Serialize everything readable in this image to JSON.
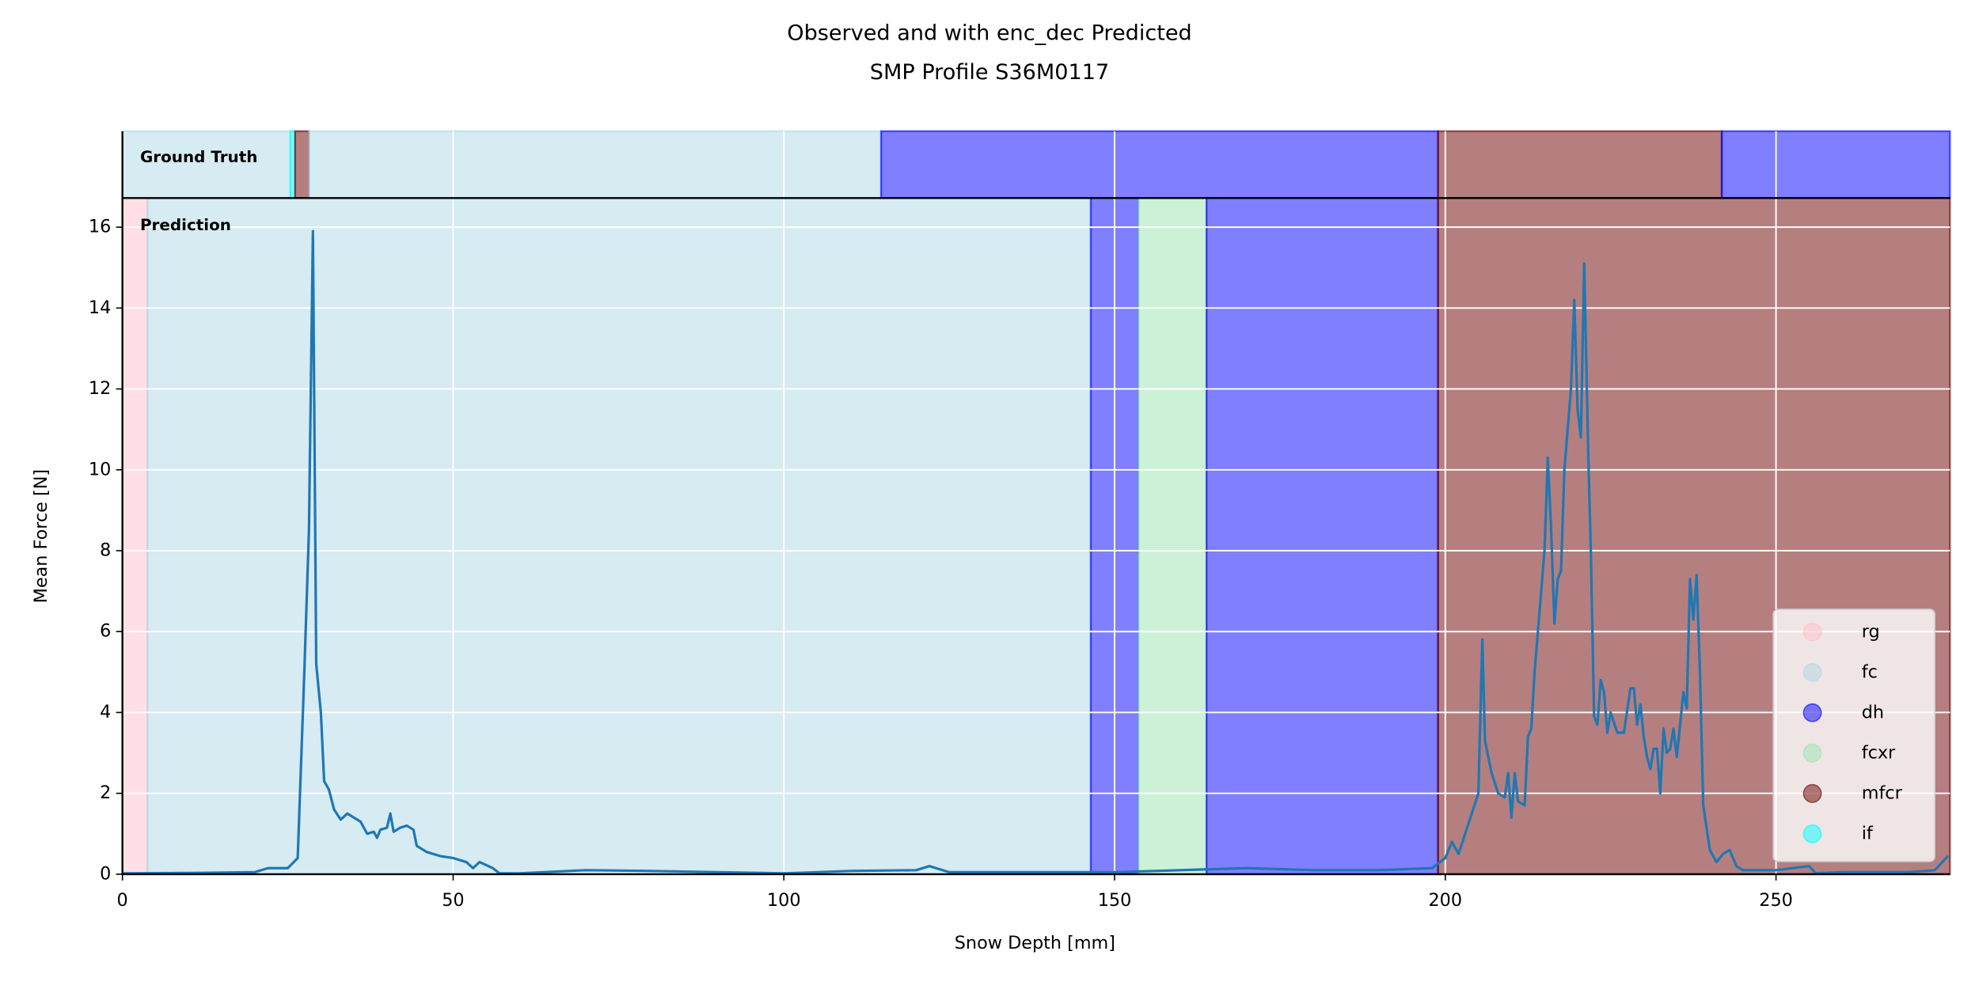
{
  "chart_data": {
    "type": "line",
    "title": "Observed and with enc_dec Predicted",
    "subtitle": "SMP Profile S36M0117",
    "x_label": "Snow Depth [mm]",
    "y_label": "Mean Force [N]",
    "xlim": [
      0,
      276.3
    ],
    "ylim": [
      0,
      16.72
    ],
    "xticks": [
      0,
      50,
      100,
      150,
      200,
      250
    ],
    "yticks": [
      0,
      2,
      4,
      6,
      8,
      10,
      12,
      14,
      16
    ],
    "grid": true,
    "legend": "lower right",
    "color": "#1f77b4",
    "x": [
      0,
      10,
      20,
      22,
      25,
      26.5,
      27.5,
      28.2,
      28.8,
      29.3,
      30,
      30.5,
      31.2,
      32,
      33,
      34,
      35,
      36,
      37,
      38,
      38.5,
      39,
      40,
      40.5,
      41,
      42,
      43,
      44,
      44.5,
      46,
      48,
      50,
      52,
      53,
      54,
      56,
      57,
      60,
      70,
      80,
      90,
      100,
      110,
      120,
      122,
      125,
      130,
      140,
      150,
      160,
      170,
      180,
      190,
      198,
      200,
      201,
      202,
      203,
      204,
      205,
      205.6,
      206,
      207,
      208,
      209,
      209.5,
      210,
      210.5,
      211,
      212,
      212.5,
      213,
      213.5,
      214,
      215,
      215.5,
      216,
      216.5,
      217,
      217.5,
      218,
      219,
      219.5,
      220,
      220.5,
      221,
      221.6,
      222,
      222.5,
      223,
      223.5,
      224,
      224.5,
      225,
      226,
      227,
      228,
      228.5,
      229,
      229.5,
      230,
      230.5,
      231,
      231.5,
      232,
      232.5,
      233,
      233.5,
      234,
      234.5,
      235,
      236,
      236.5,
      237,
      237.5,
      238,
      238.5,
      239,
      240,
      241,
      242,
      243,
      244,
      245,
      250,
      255,
      256,
      260,
      270,
      274,
      276
    ],
    "values": [
      0.02,
      0.03,
      0.05,
      0.15,
      0.15,
      0.4,
      5,
      8.5,
      15.9,
      5.2,
      4,
      2.3,
      2.1,
      1.6,
      1.35,
      1.5,
      1.4,
      1.3,
      1.0,
      1.05,
      0.9,
      1.1,
      1.15,
      1.5,
      1.05,
      1.15,
      1.2,
      1.1,
      0.7,
      0.55,
      0.45,
      0.4,
      0.3,
      0.15,
      0.3,
      0.15,
      0.02,
      0.02,
      0.1,
      0.08,
      0.05,
      0.02,
      0.08,
      0.1,
      0.2,
      0.05,
      0.05,
      0.05,
      0.05,
      0.1,
      0.15,
      0.1,
      0.1,
      0.15,
      0.4,
      0.8,
      0.5,
      1.0,
      1.5,
      2.0,
      5.8,
      3.3,
      2.5,
      2.0,
      1.9,
      2.5,
      1.4,
      2.5,
      1.8,
      1.7,
      3.4,
      3.6,
      5,
      6,
      8,
      10.3,
      8.5,
      6.2,
      7.3,
      7.5,
      10,
      12,
      14.2,
      11.5,
      10.8,
      15.1,
      10.5,
      8,
      3.9,
      3.7,
      4.8,
      4.5,
      3.5,
      4,
      3.5,
      3.5,
      4.6,
      4.6,
      3.7,
      4.2,
      3.4,
      2.9,
      2.6,
      3.1,
      3.1,
      2.0,
      3.6,
      3.0,
      3.1,
      3.6,
      2.9,
      4.5,
      4.1,
      7.3,
      6.3,
      7.4,
      5,
      1.7,
      0.6,
      0.3,
      0.5,
      0.6,
      0.2,
      0.1,
      0.1,
      0.2,
      0.02,
      0.05,
      0.05,
      0.1,
      0.45
    ],
    "classes": [
      {
        "name": "rg",
        "color": "#ffc0cb"
      },
      {
        "name": "fc",
        "color": "#add8e6"
      },
      {
        "name": "dh",
        "color": "#0000ff"
      },
      {
        "name": "fcxr",
        "color": "#98e6b0"
      },
      {
        "name": "mfcr",
        "color": "#6b0000"
      },
      {
        "name": "if",
        "color": "#00ffff"
      }
    ],
    "ground_truth": {
      "label": "Ground Truth",
      "segments": [
        {
          "class": "fc",
          "start": 0,
          "end": 25.4
        },
        {
          "class": "if",
          "start": 25.4,
          "end": 26.1
        },
        {
          "class": "mfcr",
          "start": 26.1,
          "end": 28.2
        },
        {
          "class": "fc",
          "start": 28.2,
          "end": 114.7
        },
        {
          "class": "dh",
          "start": 114.7,
          "end": 198.9
        },
        {
          "class": "mfcr",
          "start": 198.9,
          "end": 241.8
        },
        {
          "class": "dh",
          "start": 241.8,
          "end": 276.3
        }
      ]
    },
    "prediction": {
      "label": "Prediction",
      "segments": [
        {
          "class": "rg",
          "start": 0,
          "end": 3.8
        },
        {
          "class": "fc",
          "start": 3.8,
          "end": 146.4
        },
        {
          "class": "dh",
          "start": 146.4,
          "end": 153.6
        },
        {
          "class": "fcxr",
          "start": 153.6,
          "end": 163.9
        },
        {
          "class": "dh",
          "start": 163.9,
          "end": 198.9
        },
        {
          "class": "mfcr",
          "start": 198.9,
          "end": 276.3
        }
      ]
    }
  }
}
